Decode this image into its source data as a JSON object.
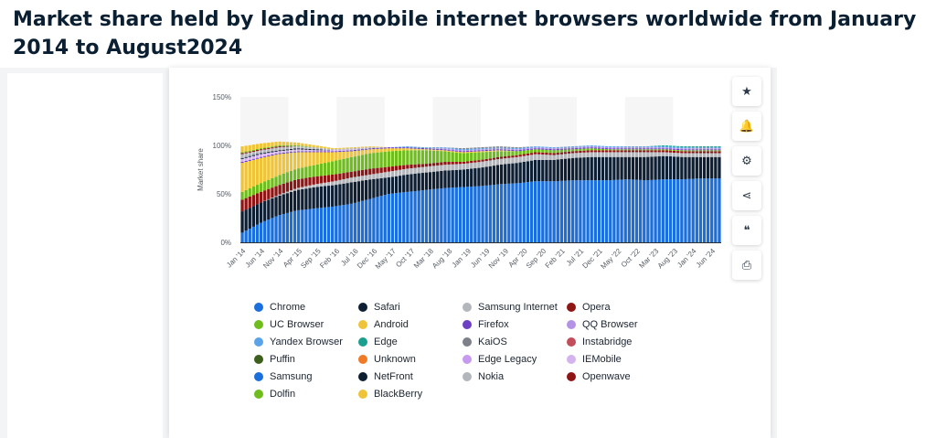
{
  "page": {
    "title": "Market share held by leading mobile internet browsers worldwide from January 2014 to August2024"
  },
  "toolbar": [
    {
      "name": "star-icon",
      "glyph": "★"
    },
    {
      "name": "bell-icon",
      "glyph": "🔔"
    },
    {
      "name": "gear-icon",
      "glyph": "⚙"
    },
    {
      "name": "share-icon",
      "glyph": "⋖"
    },
    {
      "name": "quote-icon",
      "glyph": "❝"
    },
    {
      "name": "print-icon",
      "glyph": "⎙"
    }
  ],
  "chart_data": {
    "type": "bar",
    "stacked": true,
    "title": "",
    "xlabel": "",
    "ylabel": "Market share",
    "ylim": [
      0,
      150
    ],
    "yticks": [
      "0%",
      "50%",
      "100%",
      "150%"
    ],
    "grid": false,
    "tick_labels": [
      "Jan '14",
      "Jun '14",
      "Nov '14",
      "Apr '15",
      "Sep '15",
      "Feb '16",
      "Jul '16",
      "Dec '16",
      "May '17",
      "Oct '17",
      "Mar '18",
      "Aug '18",
      "Jan '19",
      "Jun '19",
      "Nov '19",
      "Apr '20",
      "Sep '20",
      "Feb '21",
      "Jul '21",
      "Dec '21",
      "May '22",
      "Oct '22",
      "Mar '23",
      "Aug '23",
      "Jan '24",
      "Jun '24"
    ],
    "anchor_categories": [
      "Jan '14",
      "Jun '14",
      "Nov '14",
      "Apr '15",
      "Sep '15",
      "Feb '16",
      "Jul '16",
      "Dec '16",
      "May '17",
      "Oct '17",
      "Mar '18",
      "Aug '18",
      "Jan '19",
      "Jun '19",
      "Nov '19",
      "Apr '20",
      "Sep '20",
      "Feb '21",
      "Jul '21",
      "Dec '21",
      "May '22",
      "Oct '22",
      "Mar '23",
      "Aug '23",
      "Jan '24",
      "Jun '24",
      "Aug '24"
    ],
    "months_total": 128,
    "series": [
      {
        "name": "Chrome",
        "color": "#1a6fdc",
        "values": [
          10,
          20,
          28,
          33,
          35,
          37,
          40,
          45,
          50,
          52,
          54,
          56,
          57,
          58,
          60,
          61,
          63,
          63,
          64,
          64,
          64,
          65,
          64,
          65,
          65,
          66,
          66
        ]
      },
      {
        "name": "Safari",
        "color": "#0e1f33",
        "values": [
          22,
          21,
          20,
          21,
          22,
          22,
          22,
          20,
          17,
          18,
          18,
          18,
          18,
          19,
          20,
          21,
          22,
          22,
          23,
          24,
          24,
          23,
          24,
          24,
          23,
          22,
          22
        ]
      },
      {
        "name": "Samsung Internet",
        "color": "#b3b6bb",
        "values": [
          0,
          0,
          1,
          2,
          3,
          4,
          5,
          5,
          6,
          6,
          6,
          6,
          6,
          6,
          6,
          6,
          6,
          5,
          5,
          5,
          5,
          5,
          5,
          4,
          4,
          4,
          4
        ]
      },
      {
        "name": "Opera",
        "color": "#8f1414",
        "values": [
          12,
          11,
          10,
          9,
          8,
          7,
          6,
          6,
          5,
          4,
          3,
          3,
          2,
          2,
          2,
          2,
          2,
          2,
          2,
          2,
          2,
          2,
          2,
          2,
          2,
          2,
          2
        ]
      },
      {
        "name": "UC Browser",
        "color": "#6fbd1d",
        "values": [
          8,
          9,
          10,
          11,
          12,
          14,
          15,
          16,
          16,
          15,
          14,
          11,
          9,
          8,
          6,
          4,
          3,
          3,
          2,
          2,
          1,
          1,
          1,
          1,
          1,
          1,
          1
        ]
      },
      {
        "name": "Android",
        "color": "#efc438",
        "values": [
          30,
          26,
          22,
          17,
          13,
          9,
          6,
          4,
          3,
          2,
          1,
          1,
          1,
          1,
          1,
          0,
          0,
          0,
          0,
          0,
          0,
          0,
          0,
          0,
          0,
          0,
          0
        ]
      },
      {
        "name": "Firefox",
        "color": "#6d3fc4",
        "values": [
          1,
          1,
          1,
          1,
          1,
          1,
          1,
          1,
          1,
          1,
          1,
          1,
          1,
          1,
          1,
          1,
          1,
          1,
          1,
          1,
          1,
          1,
          1,
          1,
          1,
          1,
          1
        ]
      },
      {
        "name": "QQ Browser",
        "color": "#b493e6",
        "values": [
          0,
          0,
          0,
          0,
          0,
          0,
          0,
          0,
          0,
          0,
          0,
          1,
          1,
          1,
          1,
          1,
          1,
          1,
          1,
          1,
          1,
          1,
          1,
          1,
          1,
          1,
          1
        ]
      },
      {
        "name": "Yandex Browser",
        "color": "#5aa3e9",
        "values": [
          0,
          0,
          0,
          0,
          0,
          0,
          0,
          0,
          0,
          1,
          1,
          1,
          1,
          1,
          1,
          1,
          1,
          1,
          1,
          1,
          1,
          1,
          1,
          1,
          1,
          1,
          1
        ]
      },
      {
        "name": "Edge",
        "color": "#1b9f8f",
        "values": [
          0,
          0,
          0,
          0,
          0,
          0,
          0,
          0,
          0,
          0,
          0,
          0,
          0,
          0,
          0,
          0,
          0,
          0,
          0,
          0,
          0,
          0,
          0,
          1,
          1,
          1,
          1
        ]
      },
      {
        "name": "KaiOS",
        "color": "#7d8088",
        "values": [
          0,
          0,
          0,
          0,
          0,
          0,
          0,
          0,
          0,
          0,
          0,
          0,
          1,
          1,
          1,
          1,
          0,
          0,
          0,
          0,
          0,
          0,
          0,
          0,
          0,
          0,
          0
        ]
      },
      {
        "name": "Instabridge",
        "color": "#c14e5a",
        "values": [
          0,
          0,
          0,
          0,
          0,
          0,
          0,
          0,
          0,
          0,
          0,
          0,
          0,
          0,
          0,
          0,
          0,
          0,
          0,
          0,
          0,
          0,
          0,
          0,
          0,
          0,
          0
        ]
      },
      {
        "name": "Puffin",
        "color": "#3d5f1c",
        "values": [
          0,
          0,
          0,
          0,
          0,
          0,
          0,
          0,
          0,
          0,
          0,
          0,
          0,
          0,
          0,
          0,
          0,
          0,
          0,
          0,
          0,
          0,
          0,
          0,
          0,
          0,
          0
        ]
      },
      {
        "name": "Unknown",
        "color": "#f07a26",
        "values": [
          0,
          0,
          0,
          0,
          0,
          0,
          0,
          0,
          0,
          0,
          0,
          0,
          0,
          0,
          0,
          0,
          0,
          0,
          0,
          0,
          0,
          0,
          0,
          0,
          0,
          0,
          0
        ]
      },
      {
        "name": "Edge Legacy",
        "color": "#c69bef",
        "values": [
          0,
          0,
          0,
          0,
          0,
          0,
          0,
          0,
          0,
          0,
          0,
          0,
          0,
          0,
          0,
          0,
          0,
          0,
          0,
          0,
          0,
          0,
          0,
          0,
          0,
          0,
          0
        ]
      },
      {
        "name": "IEMobile",
        "color": "#d5b3ee",
        "values": [
          3,
          3,
          2,
          2,
          1,
          1,
          1,
          0,
          0,
          0,
          0,
          0,
          0,
          0,
          0,
          0,
          0,
          0,
          0,
          0,
          0,
          0,
          0,
          0,
          0,
          0,
          0
        ]
      },
      {
        "name": "Samsung",
        "color": "#1a6fdc",
        "values": [
          0,
          0,
          0,
          0,
          0,
          0,
          0,
          0,
          0,
          0,
          0,
          0,
          0,
          0,
          0,
          0,
          0,
          0,
          0,
          0,
          0,
          0,
          0,
          0,
          0,
          0,
          0
        ]
      },
      {
        "name": "NetFront",
        "color": "#0e1f33",
        "values": [
          1,
          1,
          1,
          1,
          1,
          0,
          0,
          0,
          0,
          0,
          0,
          0,
          0,
          0,
          0,
          0,
          0,
          0,
          0,
          0,
          0,
          0,
          0,
          0,
          0,
          0,
          0
        ]
      },
      {
        "name": "Nokia",
        "color": "#b3b6bb",
        "values": [
          4,
          3,
          3,
          2,
          2,
          1,
          1,
          1,
          0,
          0,
          0,
          0,
          0,
          0,
          0,
          0,
          0,
          0,
          0,
          0,
          0,
          0,
          0,
          0,
          0,
          0,
          0
        ]
      },
      {
        "name": "Openwave",
        "color": "#8f1414",
        "values": [
          1,
          1,
          1,
          0,
          0,
          0,
          0,
          0,
          0,
          0,
          0,
          0,
          0,
          0,
          0,
          0,
          0,
          0,
          0,
          0,
          0,
          0,
          0,
          0,
          0,
          0,
          0
        ]
      },
      {
        "name": "Dolfin",
        "color": "#6fbd1d",
        "values": [
          1,
          1,
          1,
          1,
          0,
          0,
          0,
          0,
          0,
          0,
          0,
          0,
          0,
          0,
          0,
          0,
          0,
          0,
          0,
          0,
          0,
          0,
          0,
          0,
          0,
          0,
          0
        ]
      },
      {
        "name": "BlackBerry",
        "color": "#efc438",
        "values": [
          6,
          5,
          4,
          3,
          2,
          1,
          1,
          1,
          0,
          0,
          0,
          0,
          0,
          0,
          0,
          0,
          0,
          0,
          0,
          0,
          0,
          0,
          0,
          0,
          0,
          0,
          0
        ]
      }
    ],
    "legend": {
      "placement": "bottom",
      "columns": 4
    }
  }
}
